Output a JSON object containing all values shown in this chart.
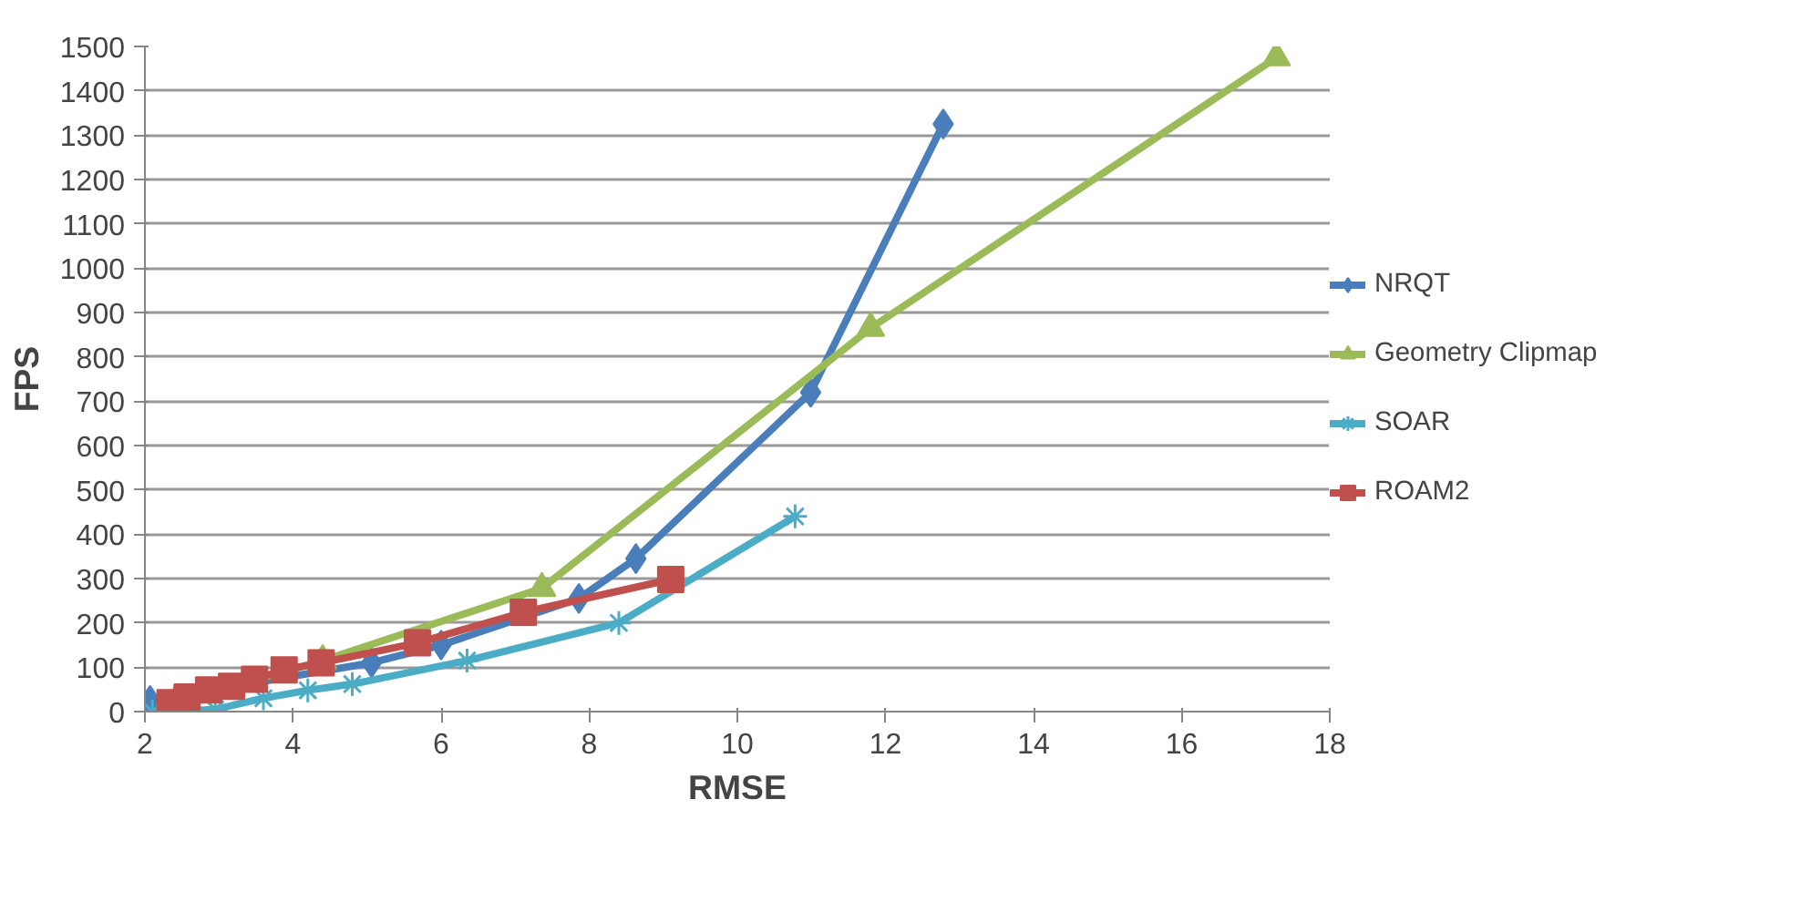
{
  "chart_data": {
    "type": "line",
    "xlabel": "RMSE",
    "ylabel": "FPS",
    "xlim": [
      2,
      18
    ],
    "xticks": [
      2,
      4,
      6,
      8,
      10,
      12,
      14,
      16,
      18
    ],
    "ylim": [
      0,
      1500
    ],
    "yticks": [
      0,
      100,
      200,
      300,
      400,
      500,
      600,
      700,
      800,
      900,
      1000,
      1100,
      1200,
      1300,
      1400,
      1500
    ],
    "grid": "y",
    "legend": "right",
    "series": [
      {
        "name": "NRQT",
        "color": "#4a7ebb",
        "marker": "diamond",
        "x": [
          2.07,
          5.06,
          6.0,
          7.86,
          8.63,
          10.99,
          12.78
        ],
        "values": [
          25,
          110,
          150,
          255,
          345,
          720,
          1325
        ]
      },
      {
        "name": "Geometry Clipmap",
        "color": "#9bbb59",
        "marker": "triangle",
        "x": [
          2.4,
          4.4,
          7.36,
          11.8,
          17.28
        ],
        "values": [
          20,
          115,
          278,
          865,
          1475
        ]
      },
      {
        "name": "SOAR",
        "color": "#4bacc6",
        "marker": "cross",
        "x": [
          2.1,
          2.45,
          2.95,
          3.6,
          4.2,
          4.8,
          6.35,
          8.4,
          10.78
        ],
        "values": [
          0,
          0,
          5,
          30,
          48,
          62,
          115,
          200,
          440
        ]
      },
      {
        "name": "ROAM2",
        "color": "#c0504d",
        "marker": "square",
        "x": [
          2.34,
          2.57,
          2.86,
          3.17,
          3.48,
          3.88,
          4.38,
          5.68,
          7.11,
          9.1
        ],
        "values": [
          20,
          33,
          49,
          57,
          73,
          94,
          110,
          155,
          224,
          298
        ]
      }
    ]
  }
}
